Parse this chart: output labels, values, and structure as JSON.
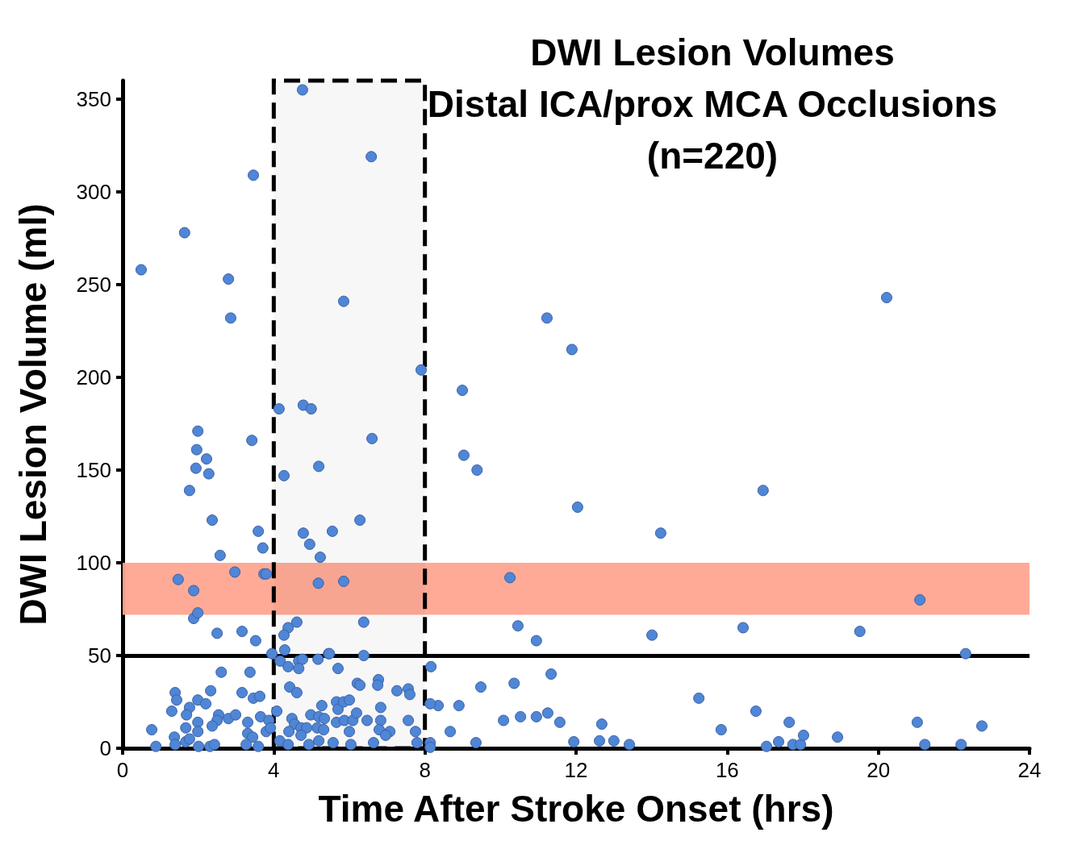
{
  "chart_data": {
    "type": "scatter",
    "title": "DWI Lesion Volumes\nDistal ICA/prox MCA Occlusions\n(n=220)",
    "xlabel": "Time After Stroke Onset (hrs)",
    "ylabel": "DWI Lesion Volume (ml)",
    "xlim": [
      0,
      24
    ],
    "xticks": [
      0,
      4,
      8,
      12,
      16,
      20,
      24
    ],
    "ylim": [
      0,
      360
    ],
    "yticks": [
      0,
      50,
      100,
      150,
      200,
      250,
      300,
      350
    ],
    "marker": "circle",
    "ref_lines": [
      {
        "axis": "y",
        "value": 50,
        "color": "#000000",
        "line_style": "solid"
      }
    ],
    "bands": [
      {
        "axis": "y",
        "from": 72,
        "to": 100,
        "color": "#ffa590"
      },
      {
        "axis": "x",
        "from": 4,
        "to": 8,
        "color": "#000000"
      }
    ],
    "series": [
      {
        "color": "#4f86d6",
        "x": [
          4.76,
          6.58,
          3.46,
          1.64,
          0.49,
          2.8,
          2.86,
          5.85,
          20.22,
          11.23,
          11.89,
          7.9,
          8.99,
          4.14,
          4.78,
          4.99,
          6.6,
          3.42,
          1.99,
          1.96,
          2.22,
          1.94,
          2.28,
          5.19,
          4.27,
          9.03,
          9.38,
          1.77,
          16.95,
          12.04,
          2.37,
          6.28,
          14.24,
          3.59,
          5.55,
          4.78,
          2.58,
          5.23,
          3.71,
          4.95,
          1.47,
          1.88,
          2.97,
          3.74,
          3.8,
          5.18,
          5.85,
          10.25,
          21.1,
          1.88,
          1.99,
          2.5,
          3.16,
          3.52,
          4.61,
          6.38,
          4.38,
          4.27,
          10.46,
          10.95,
          14.01,
          16.42,
          19.51,
          22.31,
          4.29,
          5.45,
          3.95,
          4.17,
          4.38,
          4.66,
          4.76,
          4.66,
          5.17,
          5.47,
          5.7,
          6.38,
          8.16,
          2.61,
          3.37,
          1.39,
          1.43,
          1.99,
          2.2,
          2.33,
          3.16,
          3.46,
          3.63,
          4.42,
          4.61,
          1.3,
          1.77,
          1.69,
          2.54,
          2.8,
          2.99,
          2.5,
          3.65,
          3.31,
          3.87,
          4.08,
          0.77,
          1.67,
          1.99,
          1.99,
          2.37,
          3.31,
          3.44,
          3.8,
          3.91,
          1.37,
          1.67,
          1.77,
          0.88,
          1.39,
          2.01,
          2.31,
          2.43,
          3.27,
          3.59,
          4.48,
          4.55,
          4.4,
          4.72,
          4.87,
          4.72,
          4.98,
          5.19,
          5.34,
          5.15,
          5.32,
          5.27,
          5.66,
          5.7,
          5.85,
          6.0,
          5.66,
          5.87,
          6.09,
          6.19,
          6.0,
          6.47,
          6.83,
          6.83,
          6.79,
          7.07,
          6.96,
          7.56,
          7.75,
          6.21,
          6.28,
          6.77,
          6.75,
          7.26,
          7.56,
          7.6,
          4.16,
          4.38,
          4.93,
          5.19,
          5.57,
          6.04,
          6.64,
          7.79,
          8.14,
          8.14,
          8.35,
          8.14,
          8.67,
          8.9,
          9.48,
          10.36,
          11.34,
          9.35,
          10.08,
          10.53,
          10.95,
          11.25,
          11.57,
          11.94,
          12.62,
          13.0,
          13.41,
          12.68,
          15.25,
          15.84,
          16.76,
          17.04,
          17.36,
          17.64,
          17.74,
          17.94,
          18.02,
          18.92,
          21.03,
          21.23,
          22.19,
          22.74
        ],
        "values": [
          355,
          319,
          309,
          278,
          258,
          253,
          232,
          241,
          243,
          232,
          215,
          204,
          193,
          183,
          185,
          183,
          167,
          166,
          171,
          161,
          156,
          151,
          148,
          152,
          147,
          158,
          150,
          139,
          139,
          130,
          123,
          123,
          116,
          117,
          117,
          116,
          104,
          103,
          108,
          110,
          91,
          85,
          95,
          94,
          94,
          89,
          90,
          92,
          80,
          70,
          73,
          62,
          63,
          58,
          68,
          68,
          65,
          61,
          66,
          58,
          61,
          65,
          63,
          51,
          53,
          51,
          51,
          47,
          44,
          47,
          48,
          43,
          48,
          51,
          43,
          50,
          44,
          41,
          41,
          30,
          26,
          26,
          24,
          31,
          30,
          27,
          28,
          33,
          30,
          20,
          22,
          18,
          18,
          16,
          18,
          15,
          17,
          14,
          15,
          20,
          10,
          11,
          14,
          9,
          12,
          8,
          6,
          9,
          11,
          6,
          3.5,
          5,
          1,
          2,
          1,
          1,
          2,
          2,
          1,
          16,
          13,
          9,
          11,
          11,
          7,
          18,
          17,
          16,
          11,
          10,
          23,
          25,
          21,
          25,
          26,
          14,
          15,
          15,
          19,
          9,
          15,
          22,
          15,
          10,
          9,
          7,
          15,
          9,
          35,
          34,
          37,
          34,
          31,
          32,
          29,
          4,
          2,
          2,
          4,
          3,
          2,
          3,
          3,
          3,
          0.5,
          23,
          24,
          9,
          23,
          33,
          35,
          40,
          3,
          15,
          17,
          17,
          19,
          14,
          3.5,
          4,
          4,
          2,
          13,
          27,
          10,
          20,
          1,
          3.5,
          14,
          2,
          2,
          7,
          6,
          14,
          2,
          2,
          12
        ]
      }
    ]
  }
}
